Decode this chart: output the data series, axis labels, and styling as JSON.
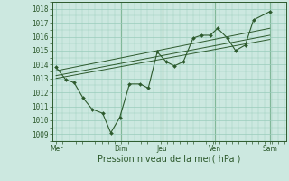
{
  "xlabel": "Pression niveau de la mer( hPa )",
  "background_color": "#cce8e0",
  "grid_color": "#99ccbb",
  "line_color": "#2d5a2d",
  "vline_color": "#4d8b4d",
  "ylim": [
    1008.5,
    1018.5
  ],
  "xlim": [
    -5,
    282
  ],
  "xtick_labels": [
    "Mer",
    "Dim",
    "Jeu",
    "Ven",
    "Sam"
  ],
  "xtick_positions": [
    0,
    80,
    130,
    195,
    262
  ],
  "ytick_values": [
    1009,
    1010,
    1011,
    1012,
    1013,
    1014,
    1015,
    1016,
    1017,
    1018
  ],
  "series_main": [
    [
      0,
      1013.8
    ],
    [
      12,
      1012.9
    ],
    [
      22,
      1012.7
    ],
    [
      33,
      1011.6
    ],
    [
      44,
      1010.8
    ],
    [
      57,
      1010.5
    ],
    [
      67,
      1009.1
    ],
    [
      78,
      1010.2
    ],
    [
      90,
      1012.6
    ],
    [
      103,
      1012.6
    ],
    [
      113,
      1012.3
    ],
    [
      124,
      1014.9
    ],
    [
      135,
      1014.2
    ],
    [
      145,
      1013.9
    ],
    [
      156,
      1014.2
    ],
    [
      168,
      1015.9
    ],
    [
      178,
      1016.1
    ],
    [
      189,
      1016.1
    ],
    [
      198,
      1016.6
    ],
    [
      210,
      1015.9
    ],
    [
      220,
      1015.0
    ],
    [
      232,
      1015.4
    ],
    [
      242,
      1017.2
    ],
    [
      262,
      1017.8
    ]
  ],
  "series_trend1": [
    [
      0,
      1013.0
    ],
    [
      262,
      1015.8
    ]
  ],
  "series_trend2": [
    [
      0,
      1013.2
    ],
    [
      262,
      1016.1
    ]
  ],
  "series_trend3": [
    [
      0,
      1013.55
    ],
    [
      262,
      1016.6
    ]
  ],
  "vline_positions": [
    80,
    130,
    195,
    262
  ],
  "tick_fontsize": 5.5,
  "xlabel_fontsize": 7.0
}
